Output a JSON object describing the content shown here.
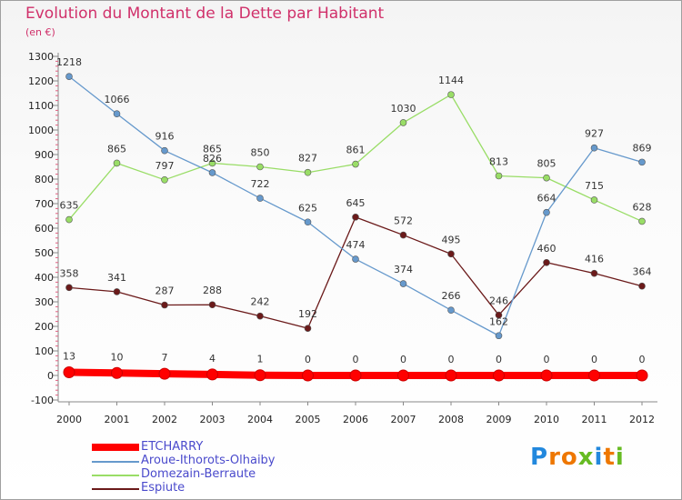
{
  "chart_data": {
    "type": "line",
    "title": "Evolution du Montant de la Dette par Habitant",
    "subtitle": "(en €)",
    "categories": [
      "2000",
      "2001",
      "2002",
      "2003",
      "2004",
      "2005",
      "2006",
      "2007",
      "2008",
      "2009",
      "2010",
      "2011",
      "2012"
    ],
    "y_ticks": [
      "-100",
      "0",
      "100",
      "200",
      "300",
      "400",
      "500",
      "600",
      "700",
      "800",
      "900",
      "1000",
      "1100",
      "1200",
      "1300"
    ],
    "ylim": [
      -100,
      1300
    ],
    "grid": false,
    "legend_position": "bottom-left",
    "series": [
      {
        "name": "ETCHARRY",
        "color": "#ff0000",
        "values": [
          13,
          10,
          7,
          4,
          1,
          0,
          0,
          0,
          0,
          0,
          0,
          0,
          0
        ]
      },
      {
        "name": "Aroue-Ithorots-Olhaiby",
        "color": "#6699cc",
        "values": [
          1218,
          1066,
          916,
          826,
          722,
          625,
          474,
          374,
          266,
          162,
          664,
          927,
          869
        ]
      },
      {
        "name": "Domezain-Berraute",
        "color": "#99dd66",
        "values": [
          635,
          865,
          797,
          865,
          850,
          827,
          861,
          1030,
          1144,
          813,
          805,
          715,
          628
        ]
      },
      {
        "name": "Espiute",
        "color": "#6b1a1a",
        "values": [
          358,
          341,
          287,
          288,
          242,
          192,
          645,
          572,
          495,
          246,
          460,
          416,
          364
        ]
      }
    ]
  },
  "brand": {
    "letters": [
      "P",
      "r",
      "o",
      "x",
      "i",
      "t",
      "i"
    ],
    "colors": [
      "#2288dd",
      "#ee7700",
      "#ee7700",
      "#66bb22",
      "#2288dd",
      "#ee7700",
      "#66bb22"
    ]
  }
}
